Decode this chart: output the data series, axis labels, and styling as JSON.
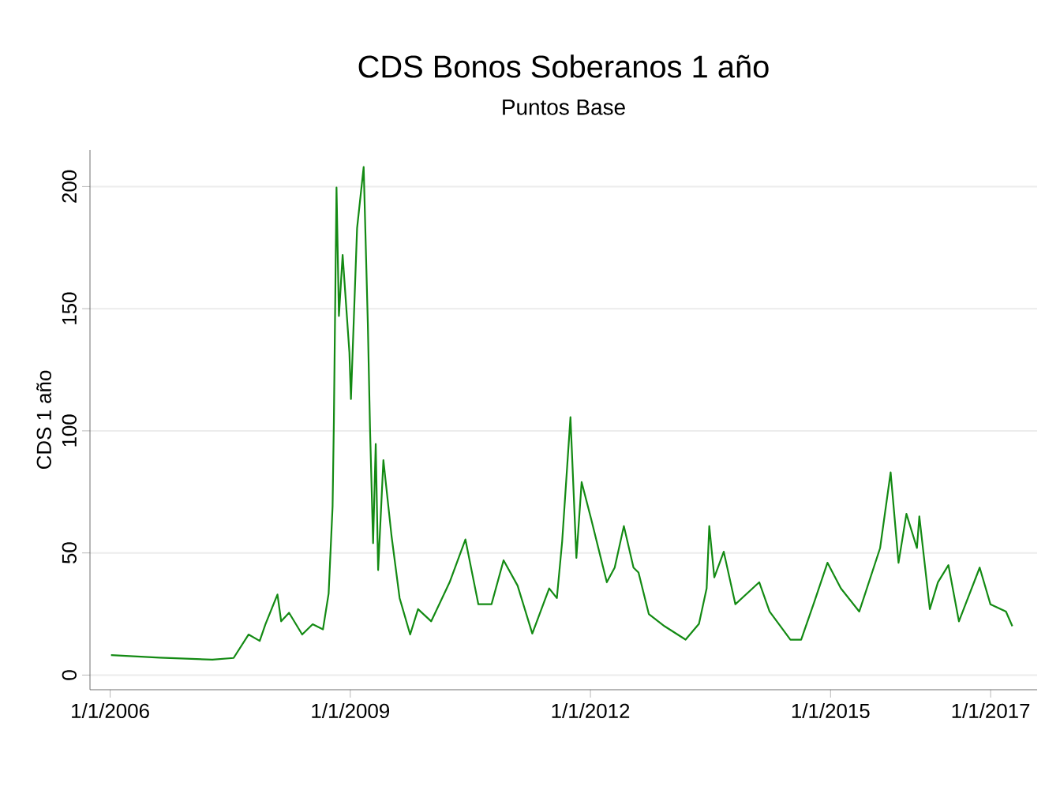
{
  "chart_data": {
    "type": "line",
    "title": "CDS Bonos Soberanos 1 año",
    "subtitle": "Puntos Base",
    "ylabel": "CDS 1 año",
    "xlim": [
      "2005-10-01",
      "2017-08-01"
    ],
    "ylim": [
      -6,
      215
    ],
    "xticks": [
      {
        "value": "2006-01-01",
        "label": "1/1/2006"
      },
      {
        "value": "2009-01-01",
        "label": "1/1/2009"
      },
      {
        "value": "2012-01-01",
        "label": "1/1/2012"
      },
      {
        "value": "2015-01-01",
        "label": "1/1/2015"
      },
      {
        "value": "2017-01-01",
        "label": "1/1/2017"
      }
    ],
    "yticks": [
      0,
      50,
      100,
      150,
      200
    ],
    "grid": "y",
    "series": [
      {
        "color": "#138a13",
        "x": [
          "2006-01-05",
          "2006-08-15",
          "2007-04-12",
          "2007-07-18",
          "2007-09-24",
          "2007-11-14",
          "2007-12-10",
          "2008-02-03",
          "2008-02-20",
          "2008-03-27",
          "2008-05-26",
          "2008-07-13",
          "2008-08-29",
          "2008-09-24",
          "2008-10-12",
          "2008-10-18",
          "2008-10-30",
          "2008-11-10",
          "2008-11-27",
          "2008-12-28",
          "2009-01-04",
          "2009-02-01",
          "2009-03-03",
          "2009-03-22",
          "2009-04-01",
          "2009-04-15",
          "2009-04-27",
          "2009-05-08",
          "2009-06-01",
          "2009-07-08",
          "2009-08-14",
          "2009-10-01",
          "2009-11-06",
          "2010-01-05",
          "2010-03-30",
          "2010-06-10",
          "2010-08-08",
          "2010-10-07",
          "2010-12-01",
          "2011-02-03",
          "2011-04-11",
          "2011-06-27",
          "2011-08-01",
          "2011-08-25",
          "2011-10-02",
          "2011-10-29",
          "2011-11-22",
          "2012-01-04",
          "2012-03-16",
          "2012-04-21",
          "2012-06-02",
          "2012-07-16",
          "2012-08-08",
          "2012-09-24",
          "2012-12-05",
          "2013-03-11",
          "2013-05-11",
          "2013-06-15",
          "2013-06-27",
          "2013-07-20",
          "2013-09-01",
          "2013-10-24",
          "2014-02-10",
          "2014-03-29",
          "2014-07-02",
          "2014-08-20",
          "2014-10-19",
          "2014-12-18",
          "2015-02-17",
          "2015-05-12",
          "2015-08-15",
          "2015-10-02",
          "2015-11-07",
          "2015-12-13",
          "2016-01-30",
          "2016-02-10",
          "2016-03-29",
          "2016-05-05",
          "2016-06-22",
          "2016-08-09",
          "2016-11-12",
          "2016-12-31",
          "2017-03-12",
          "2017-04-10"
        ],
        "values": [
          8.2,
          7.1,
          6.3,
          7,
          16.6,
          14,
          20.8,
          33,
          22,
          25.5,
          16.6,
          20.8,
          18.7,
          33.4,
          69,
          104,
          199.6,
          147,
          172,
          132,
          113,
          183,
          208,
          144,
          101,
          54,
          94.6,
          43,
          88,
          57,
          31.5,
          16.6,
          27,
          22,
          38,
          55.5,
          29,
          29,
          47,
          36.6,
          17,
          35.5,
          31.5,
          54.5,
          105.6,
          48,
          79,
          64,
          38,
          44,
          61,
          44,
          42,
          25,
          20,
          14.5,
          21,
          35.5,
          61,
          40,
          50.5,
          29,
          38,
          26,
          14.5,
          14.5,
          30,
          46,
          35.5,
          26,
          52,
          83,
          46,
          66,
          52,
          65,
          27,
          38,
          45,
          22,
          44,
          29,
          26,
          20
        ]
      }
    ]
  }
}
